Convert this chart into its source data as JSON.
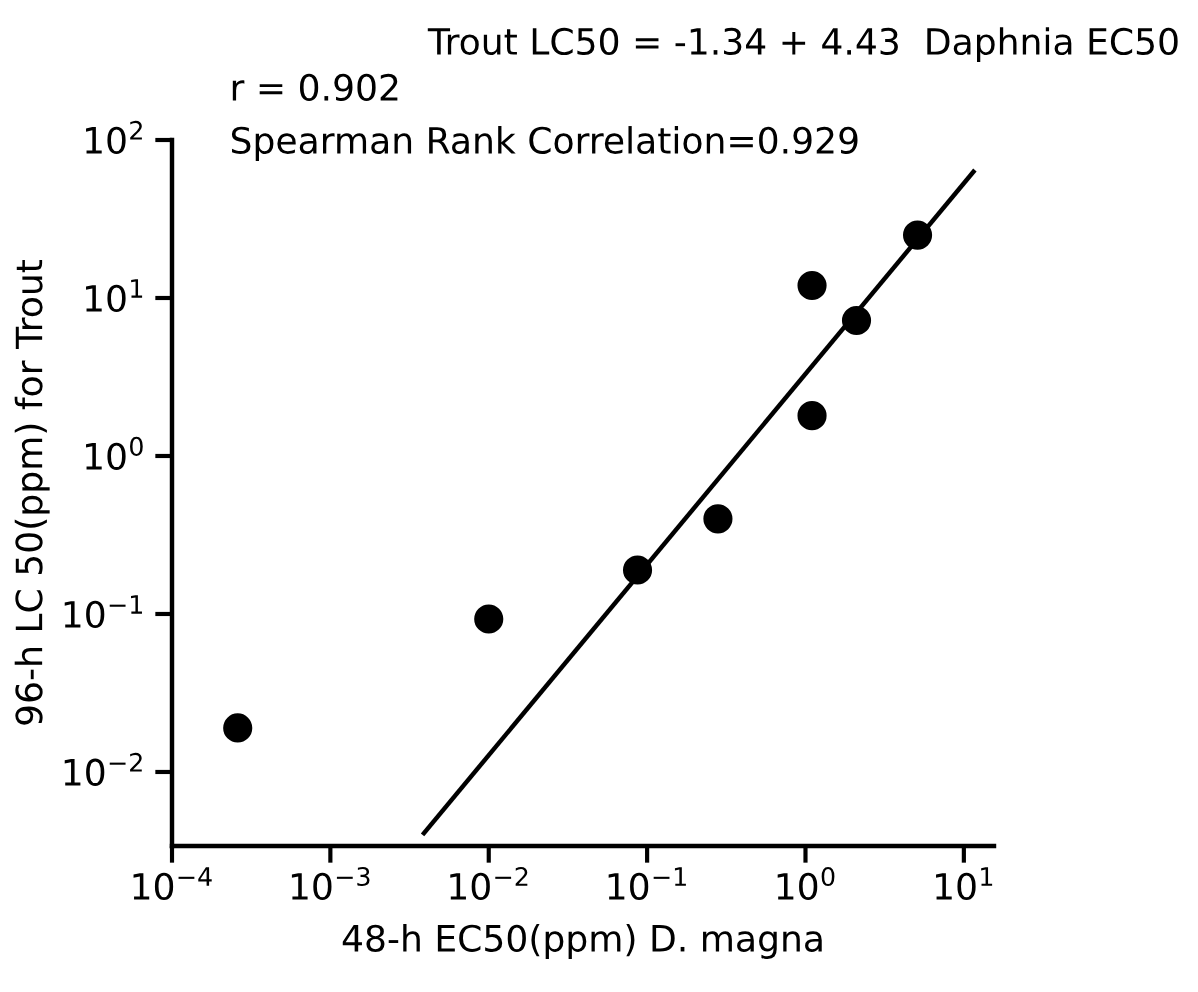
{
  "chart_data": {
    "type": "scatter",
    "title": "Trout LC50 = -1.34 + 4.43  Daphnia EC50",
    "xlabel": "48-h EC50(ppm) D. magna",
    "ylabel": "96-h LC 50(ppm) for Trout",
    "annotations": [
      "r = 0.902",
      "Spearman Rank Correlation=0.929"
    ],
    "log": "xy",
    "xlim": [
      0.0001,
      15.5
    ],
    "ylim": [
      0.0034,
      100
    ],
    "xticks": [
      {
        "value": 0.0001,
        "label": "10$^{−4}$"
      },
      {
        "value": 0.001,
        "label": "10$^{−3}$"
      },
      {
        "value": 0.01,
        "label": "10$^{−2}$"
      },
      {
        "value": 0.1,
        "label": "10$^{−1}$"
      },
      {
        "value": 1,
        "label": "10$^{0}$"
      },
      {
        "value": 10,
        "label": "10$^{1}$"
      }
    ],
    "yticks": [
      {
        "value": 0.01,
        "label": "10$^{−2}$"
      },
      {
        "value": 0.1,
        "label": "10$^{−1}$"
      },
      {
        "value": 1,
        "label": "10$^{0}$"
      },
      {
        "value": 10,
        "label": "10$^{1}$"
      },
      {
        "value": 100,
        "label": "10$^{2}$"
      }
    ],
    "grid": false,
    "series": [
      {
        "color": "#000000",
        "marker": "circle",
        "x": [
          0.00026,
          0.01,
          0.087,
          0.28,
          1.1,
          1.1,
          2.1,
          5.1
        ],
        "values": [
          0.019,
          0.093,
          0.19,
          0.4,
          1.8,
          12,
          7.2,
          25
        ]
      },
      {
        "type": "line",
        "color": "#000000",
        "marker": "none",
        "line_style": "solid",
        "x": [
          0.0039,
          11.5
        ],
        "values": [
          0.0041,
          63
        ]
      }
    ]
  }
}
